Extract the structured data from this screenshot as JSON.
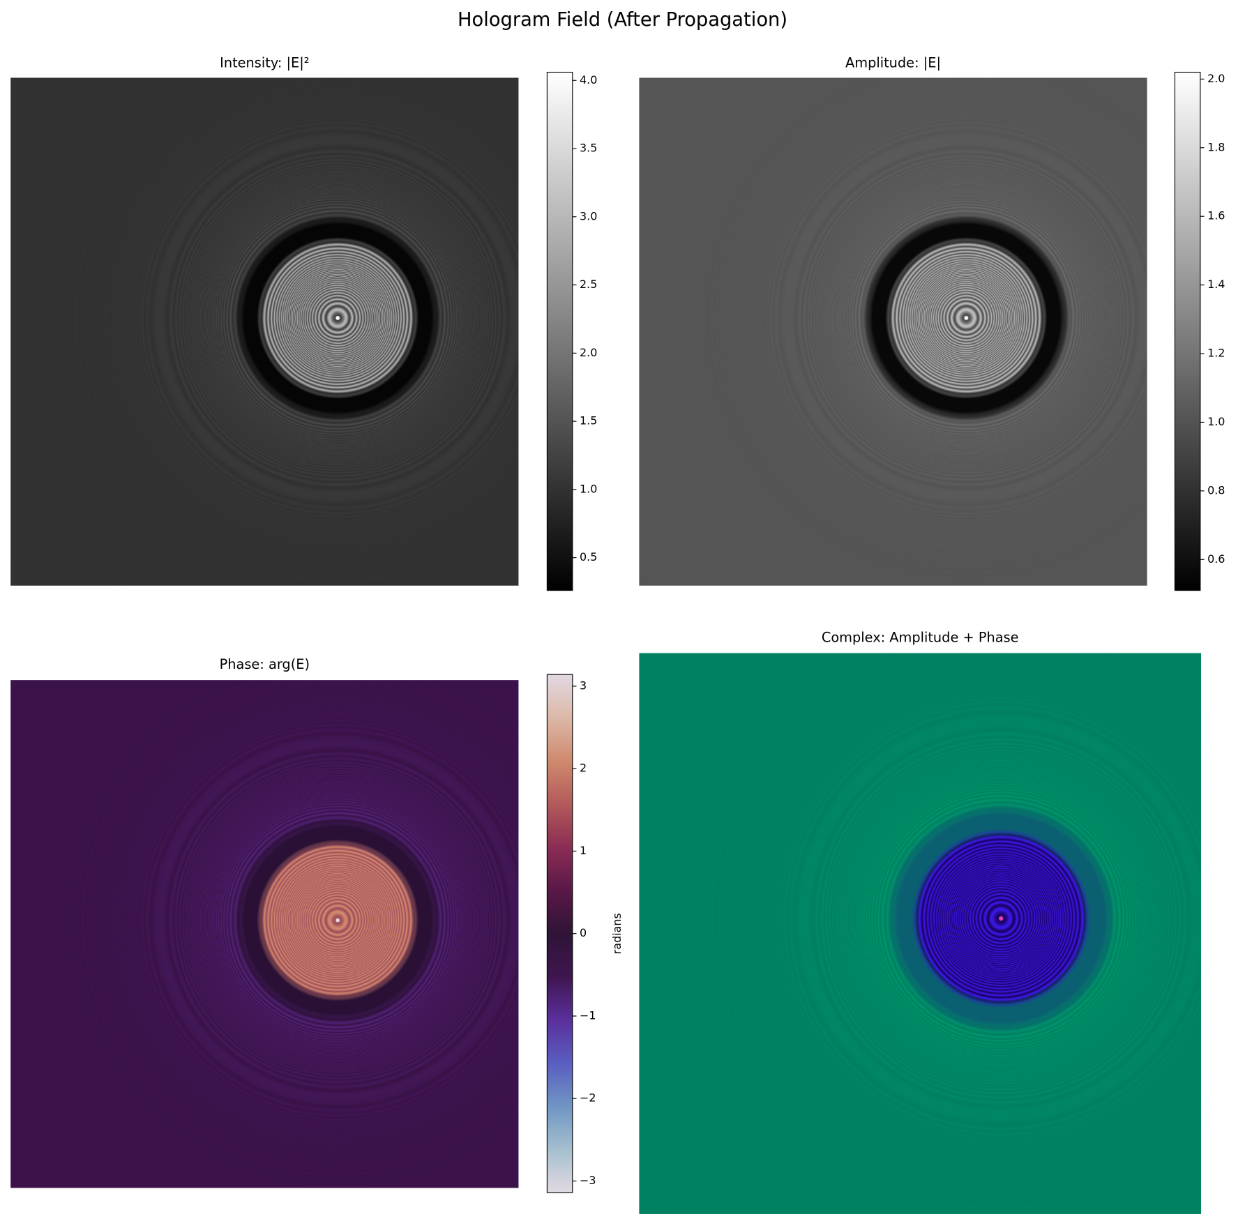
{
  "title": "Hologram Field (After Propagation)",
  "chart_data": [
    {
      "type": "heatmap",
      "title": "Intensity: |E|²",
      "colormap": "gray",
      "colorbar": {
        "lim": [
          0.26,
          4.06
        ],
        "ticks": [
          0.5,
          {
            "value": 1,
            "label": "1.0"
          },
          1.5,
          {
            "value": 2,
            "label": "2.0"
          },
          2.5,
          {
            "value": 3,
            "label": "3.0"
          },
          3.5,
          {
            "value": 4,
            "label": "4.0"
          }
        ]
      }
    },
    {
      "type": "heatmap",
      "title": "Amplitude: |E|",
      "colormap": "gray",
      "colorbar": {
        "lim": [
          0.51,
          2.02
        ],
        "ticks": [
          0.6,
          0.8,
          {
            "value": 1,
            "label": "1.0"
          },
          1.2,
          1.4,
          1.6,
          1.8,
          {
            "value": 2,
            "label": "2.0"
          }
        ]
      }
    },
    {
      "type": "heatmap",
      "title": "Phase: arg(E)",
      "colormap": "twilight",
      "colorbar": {
        "lim": [
          -3.1416,
          3.1416
        ],
        "label": "radians",
        "ticks": [
          {
            "value": -3,
            "label": "−3"
          },
          {
            "value": -2,
            "label": "−2"
          },
          {
            "value": -1,
            "label": "−1"
          },
          0,
          1,
          2,
          3
        ]
      }
    },
    {
      "type": "heatmap",
      "title": "Complex: Amplitude + Phase",
      "colormap": "hsv"
    }
  ]
}
